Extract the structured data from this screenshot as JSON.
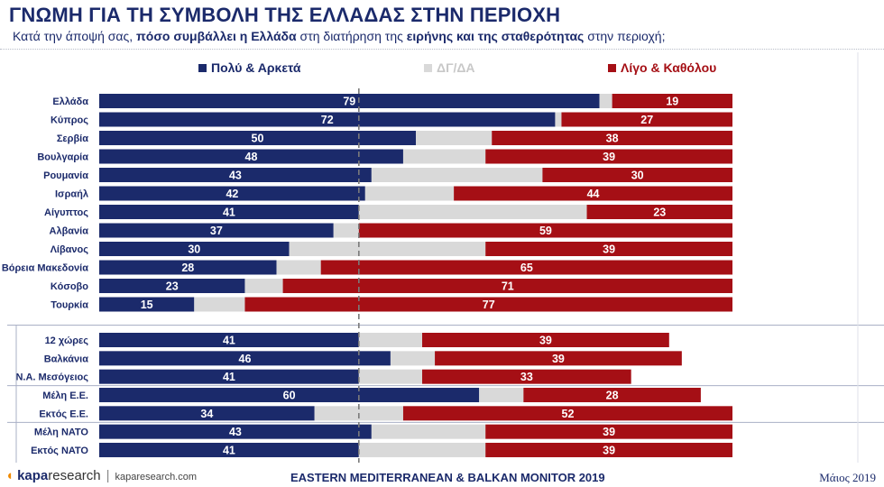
{
  "header": {
    "title": "ΓΝΩΜΗ ΓΙΑ ΤΗ ΣΥΜΒΟΛΗ ΤΗΣ ΕΛΛΑΔΑΣ ΣΤΗΝ ΠΕΡΙΟΧΗ",
    "subtitle_parts": [
      {
        "text": "Κατά την άποψή σας, ",
        "bold": false
      },
      {
        "text": "πόσο συμβάλλει η Ελλάδα",
        "bold": true
      },
      {
        "text": " στη διατήρηση της ",
        "bold": false
      },
      {
        "text": "ειρήνης και της σταθερότητας",
        "bold": true
      },
      {
        "text": " στην περιοχή;",
        "bold": false
      }
    ]
  },
  "colors": {
    "much": "#1b2a6b",
    "dkna": "#d9d9d9",
    "little": "#a50f15",
    "accent": "#f08a00"
  },
  "chart_data": {
    "type": "bar",
    "orientation": "horizontal-stacked-diverging",
    "categories": [
      "Ελλάδα",
      "Κύπρος",
      "Σερβία",
      "Βουλγαρία",
      "Ρουμανία",
      "Ισραήλ",
      "Αίγυπτος",
      "Αλβανία",
      "Λίβανος",
      "Βόρεια Μακεδονία",
      "Κόσοβο",
      "Τουρκία",
      "12 χώρες",
      "Βαλκάνια",
      "Ν.Α. Μεσόγειος",
      "Μέλη Ε.Ε.",
      "Εκτός Ε.Ε.",
      "Μέλη ΝΑΤΟ",
      "Εκτός ΝΑΤΟ"
    ],
    "series": [
      {
        "name": "Πολύ & Αρκετά",
        "values": [
          79,
          72,
          50,
          48,
          43,
          42,
          41,
          37,
          30,
          28,
          23,
          15,
          41,
          46,
          41,
          60,
          34,
          43,
          41
        ]
      },
      {
        "name": "ΔΓ/ΔΑ",
        "values": [
          2,
          1,
          12,
          13,
          27,
          14,
          36,
          4,
          31,
          7,
          6,
          8,
          10,
          7,
          10,
          7,
          14,
          18,
          20
        ]
      },
      {
        "name": "Λίγο & Καθόλου",
        "values": [
          19,
          27,
          38,
          39,
          30,
          44,
          23,
          59,
          39,
          65,
          71,
          77,
          39,
          39,
          33,
          28,
          52,
          39,
          39
        ]
      }
    ],
    "labelled_series": [
      0,
      2
    ],
    "xlim": [
      0,
      100
    ],
    "reference_line": 41,
    "group_break_after": 11,
    "separators_after": [
      14,
      16
    ],
    "legend_position": "top",
    "grid": false
  },
  "footer": {
    "logo_brand": "kapa",
    "logo_sub": "research",
    "logo_sep": "|",
    "url": "kaparesearch.com",
    "center": "EASTERN MEDITERRANEAN & BALKAN MONITOR 2019",
    "date": "Μάιος 2019"
  }
}
